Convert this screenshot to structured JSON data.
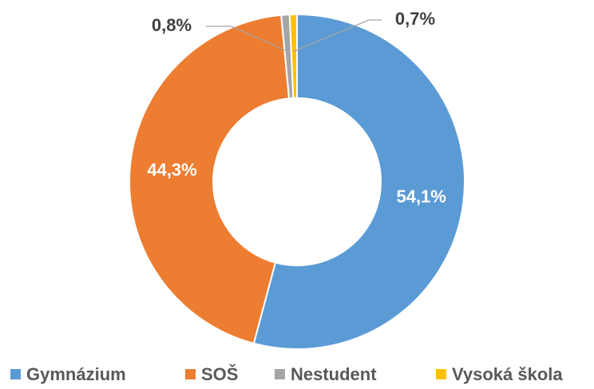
{
  "chart_data": {
    "type": "donut",
    "categories": [
      "Gymnázium",
      "SOŠ",
      "Nestudent",
      "Vysoká škola"
    ],
    "values": [
      54.1,
      44.3,
      0.8,
      0.7
    ],
    "value_labels": [
      "54,1%",
      "44,3%",
      "0,8%",
      "0,7%"
    ],
    "colors": [
      "#5b9bd5",
      "#ed7d31",
      "#a5a5a5",
      "#ffc000"
    ],
    "legend": "bottom"
  }
}
